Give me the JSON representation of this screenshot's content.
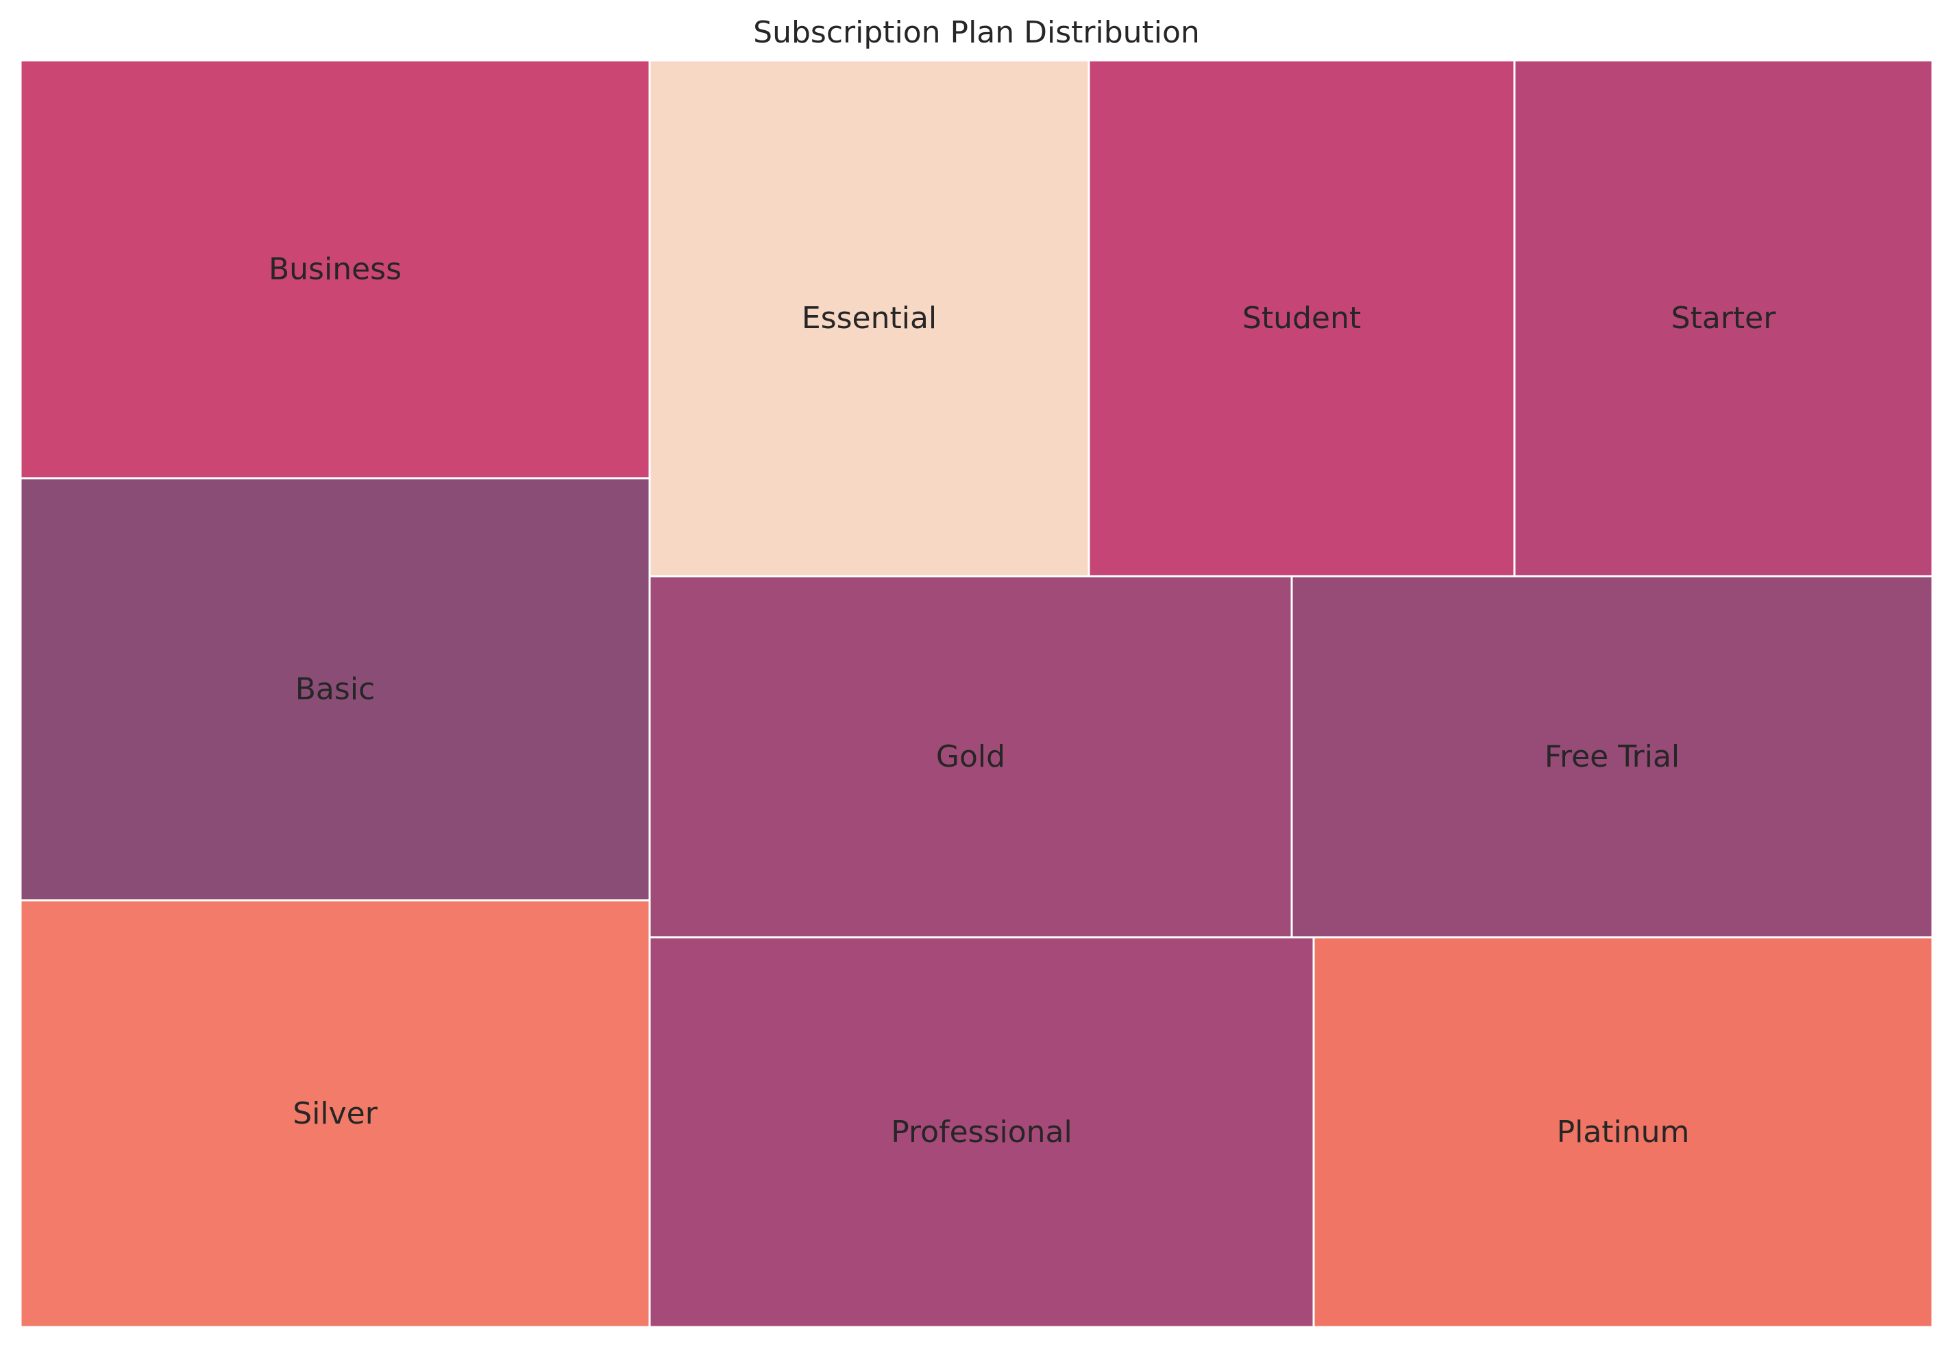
{
  "chart_data": {
    "type": "treemap",
    "title": "Subscription Plan Distribution",
    "items": [
      {
        "name": "Business",
        "value": 12,
        "color": "#cc4674"
      },
      {
        "name": "Basic",
        "value": 12,
        "color": "#8a4e76"
      },
      {
        "name": "Silver",
        "value": 12,
        "color": "#f27c69"
      },
      {
        "name": "Essential",
        "value": 10,
        "color": "#f7d8c4"
      },
      {
        "name": "Student",
        "value": 10,
        "color": "#c54577"
      },
      {
        "name": "Starter",
        "value": 10,
        "color": "#b84676"
      },
      {
        "name": "Gold",
        "value": 10,
        "color": "#a14c78"
      },
      {
        "name": "Free Trial",
        "value": 10,
        "color": "#974b77"
      },
      {
        "name": "Professional",
        "value": 11,
        "color": "#a64b79"
      },
      {
        "name": "Platinum",
        "value": 10,
        "color": "#f07565"
      }
    ]
  }
}
